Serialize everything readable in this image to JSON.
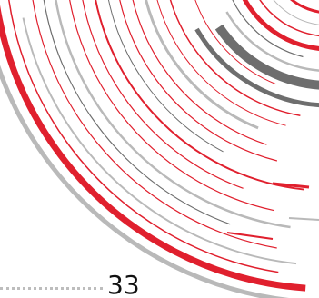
{
  "page": {
    "number": "33"
  },
  "graphic": {
    "name": "concentric-arcs-decoration",
    "colors": {
      "red": "#e0202e",
      "dark_gray": "#6e6e6e",
      "light_gray": "#b9b9b9"
    }
  }
}
